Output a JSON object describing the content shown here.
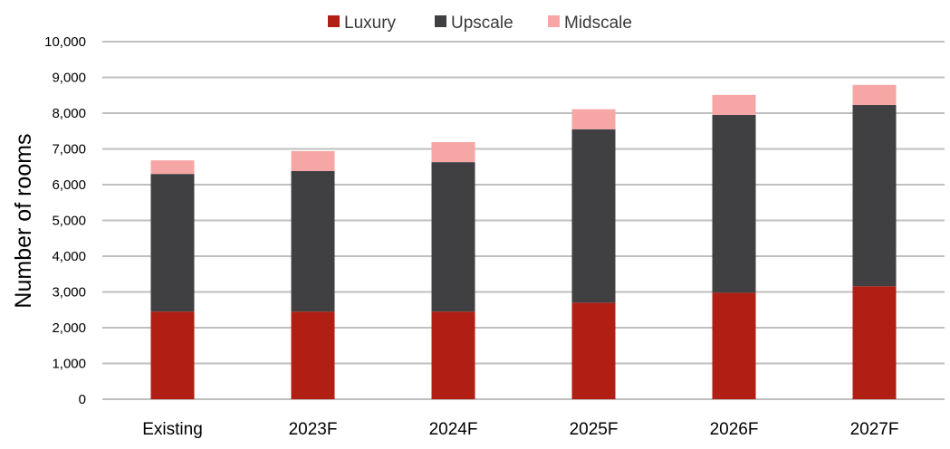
{
  "chart_data": {
    "type": "bar",
    "stacked": true,
    "categories": [
      "Existing",
      "2023F",
      "2024F",
      "2025F",
      "2026F",
      "2027F"
    ],
    "series": [
      {
        "name": "Luxury",
        "color": "#b01e14",
        "values": [
          2450,
          2450,
          2450,
          2700,
          2980,
          3160
        ]
      },
      {
        "name": "Upscale",
        "color": "#404042",
        "values": [
          3850,
          3930,
          4180,
          4850,
          4970,
          5070
        ]
      },
      {
        "name": "Midscale",
        "color": "#f7a6a6",
        "values": [
          380,
          560,
          560,
          560,
          560,
          560
        ]
      }
    ],
    "title": "",
    "xlabel": "",
    "ylabel": "Number of rooms",
    "ylim": [
      0,
      10000
    ],
    "yticks": [
      "0",
      "1,000",
      "2,000",
      "3,000",
      "4,000",
      "5,000",
      "6,000",
      "7,000",
      "8,000",
      "9,000",
      "10,000"
    ],
    "grid": true,
    "legend_position": "top"
  }
}
